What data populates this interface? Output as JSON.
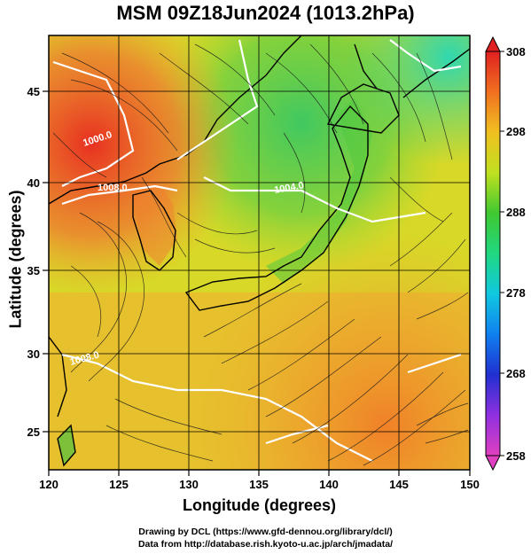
{
  "title": "MSM 09Z18Jun2024 (1013.2hPa)",
  "xlabel": "Longitude (degrees)",
  "ylabel": "Latitude  (degrees)",
  "x_ticks": [
    "120",
    "125",
    "130",
    "135",
    "140",
    "145",
    "150"
  ],
  "y_ticks": [
    "25",
    "30",
    "35",
    "40",
    "45"
  ],
  "colorbar_ticks": [
    "308",
    "298",
    "288",
    "278",
    "268",
    "258"
  ],
  "contour_labels": [
    "1000.0",
    "1008.0",
    "1004.0",
    "1008.0"
  ],
  "credits": {
    "line1": "Drawing by DCL (https://www.gfd-dennou.org/library/dcl/)",
    "line2": "Data from http://database.rish.kyoto-u.ac.jp/arch/jmadata/"
  },
  "map": {
    "lon_range": [
      120,
      150
    ],
    "lat_range": [
      22.5,
      47.5
    ],
    "variable": "temperature (K) with surface streamlines",
    "color_range": [
      258,
      308
    ]
  }
}
